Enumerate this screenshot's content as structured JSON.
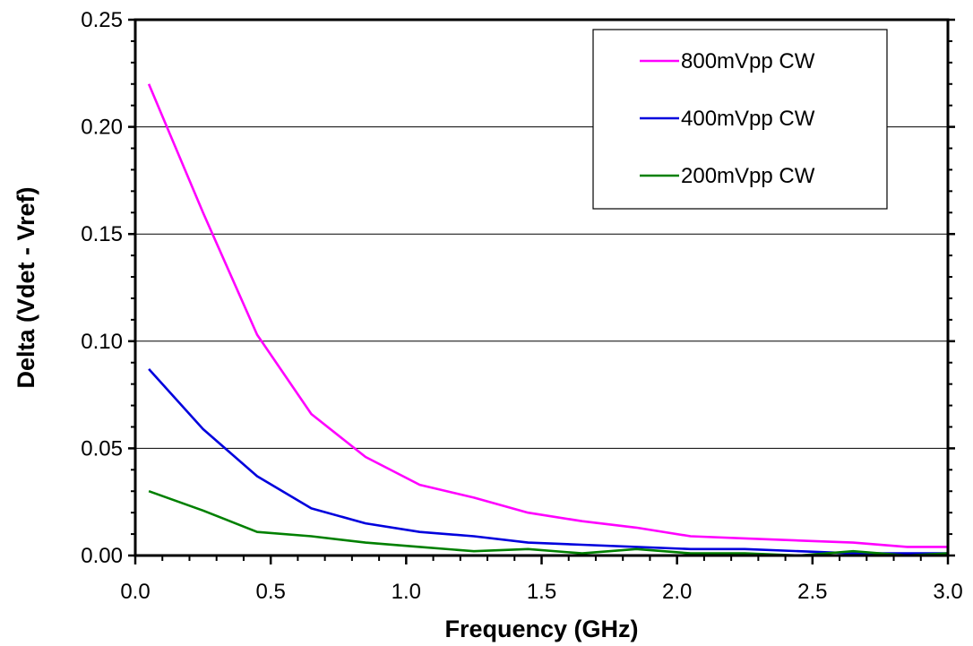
{
  "chart_data": {
    "type": "line",
    "title": "",
    "xlabel": "Frequency (GHz)",
    "ylabel": "Delta (Vdet - Vref)",
    "xlim": [
      0.0,
      3.0
    ],
    "ylim": [
      0.0,
      0.25
    ],
    "xticks": [
      "0.0",
      "0.5",
      "1.0",
      "1.5",
      "2.0",
      "2.5",
      "3.0"
    ],
    "yticks": [
      "0.00",
      "0.05",
      "0.10",
      "0.15",
      "0.20",
      "0.25"
    ],
    "grid": "horizontal",
    "legend_position": "top-right",
    "x": [
      0.05,
      0.25,
      0.45,
      0.65,
      0.85,
      1.05,
      1.25,
      1.45,
      1.65,
      1.85,
      2.05,
      2.25,
      2.45,
      2.65,
      2.85,
      3.0
    ],
    "series": [
      {
        "name": "800mVpp CW",
        "color": "#ff00ff",
        "values": [
          0.22,
          0.16,
          0.103,
          0.066,
          0.046,
          0.033,
          0.027,
          0.02,
          0.016,
          0.013,
          0.009,
          0.008,
          0.007,
          0.006,
          0.004,
          0.004
        ]
      },
      {
        "name": "400mVpp CW",
        "color": "#0000dd",
        "values": [
          0.087,
          0.059,
          0.037,
          0.022,
          0.015,
          0.011,
          0.009,
          0.006,
          0.005,
          0.004,
          0.003,
          0.003,
          0.002,
          0.001,
          0.001,
          0.001
        ]
      },
      {
        "name": "200mVpp CW",
        "color": "#008000",
        "values": [
          0.03,
          0.021,
          0.011,
          0.009,
          0.006,
          0.004,
          0.002,
          0.003,
          0.001,
          0.003,
          0.001,
          0.001,
          0.0,
          0.002,
          0.0,
          0.001
        ]
      }
    ]
  }
}
